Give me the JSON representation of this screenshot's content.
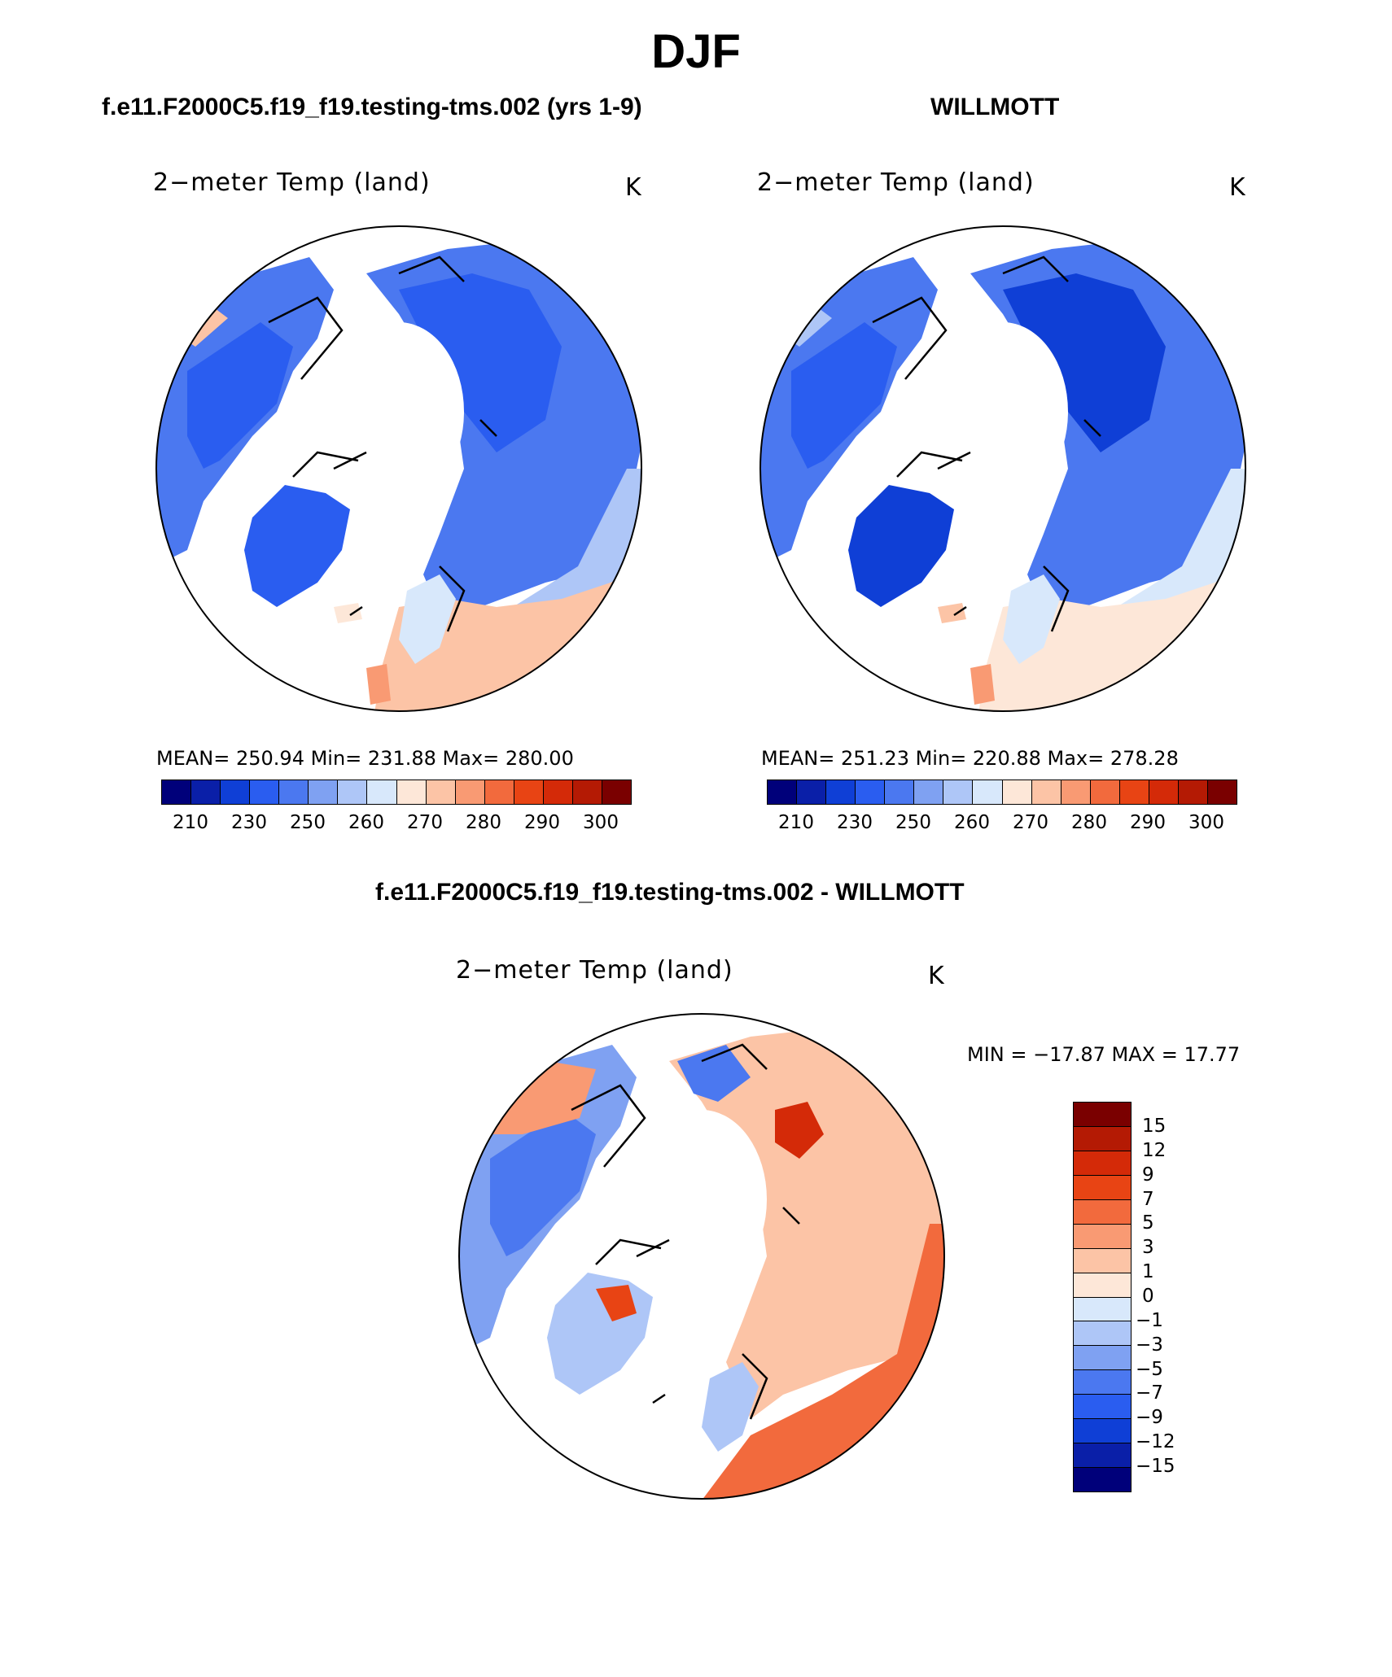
{
  "figure": {
    "title": "DJF",
    "panel_left": {
      "header": "f.e11.F2000C5.f19_f19.testing-tms.002 (yrs 1-9)",
      "subtitle": "2−meter Temp (land)",
      "units": "K",
      "stats": "MEAN= 250.94   Min= 231.88   Max= 280.00"
    },
    "panel_right": {
      "header": "WILLMOTT",
      "subtitle": "2−meter Temp (land)",
      "units": "K",
      "stats": "MEAN= 251.23   Min= 220.88   Max= 278.28"
    },
    "panel_diff": {
      "header": "f.e11.F2000C5.f19_f19.testing-tms.002 - WILLMOTT",
      "subtitle": "2−meter Temp (land)",
      "units": "K",
      "stats": "MIN =  −17.87  MAX =   17.77"
    }
  },
  "chart_data": [
    {
      "type": "heatmap",
      "projection": "north polar stereographic",
      "title": "f.e11.F2000C5.f19_f19.testing-tms.002 (yrs 1-9)",
      "variable": "2-meter Temp (land)",
      "units": "K",
      "mean": 250.94,
      "min": 231.88,
      "max": 280.0,
      "colorbar_ticks": [
        "210",
        "230",
        "250",
        "260",
        "270",
        "280",
        "290",
        "300"
      ],
      "colors": [
        "#00007a",
        "#0a1fa8",
        "#0f3fd6",
        "#2a5df0",
        "#4b78f0",
        "#7fa1f2",
        "#aec6f7",
        "#d8e8fb",
        "#fde7d8",
        "#fcc4a6",
        "#f99a73",
        "#f26a3d",
        "#e84414",
        "#d42a08",
        "#b41a04",
        "#7a0000"
      ]
    },
    {
      "type": "heatmap",
      "projection": "north polar stereographic",
      "title": "WILLMOTT",
      "variable": "2-meter Temp (land)",
      "units": "K",
      "mean": 251.23,
      "min": 220.88,
      "max": 278.28,
      "colorbar_ticks": [
        "210",
        "230",
        "250",
        "260",
        "270",
        "280",
        "290",
        "300"
      ],
      "colors": [
        "#00007a",
        "#0a1fa8",
        "#0f3fd6",
        "#2a5df0",
        "#4b78f0",
        "#7fa1f2",
        "#aec6f7",
        "#d8e8fb",
        "#fde7d8",
        "#fcc4a6",
        "#f99a73",
        "#f26a3d",
        "#e84414",
        "#d42a08",
        "#b41a04",
        "#7a0000"
      ]
    },
    {
      "type": "heatmap",
      "projection": "north polar stereographic",
      "title": "f.e11.F2000C5.f19_f19.testing-tms.002 - WILLMOTT",
      "variable": "2-meter Temp (land)",
      "units": "K",
      "min": -17.87,
      "max": 17.77,
      "colorbar_ticks": [
        "15",
        "12",
        "9",
        "7",
        "5",
        "3",
        "1",
        "0",
        "−1",
        "−3",
        "−5",
        "−7",
        "−9",
        "−12",
        "−15"
      ],
      "colors": [
        "#7a0000",
        "#b41a04",
        "#d42a08",
        "#e84414",
        "#f26a3d",
        "#f99a73",
        "#fcc4a6",
        "#fde7d8",
        "#d8e8fb",
        "#aec6f7",
        "#7fa1f2",
        "#4b78f0",
        "#2a5df0",
        "#0f3fd6",
        "#0a1fa8",
        "#00007a"
      ]
    }
  ]
}
